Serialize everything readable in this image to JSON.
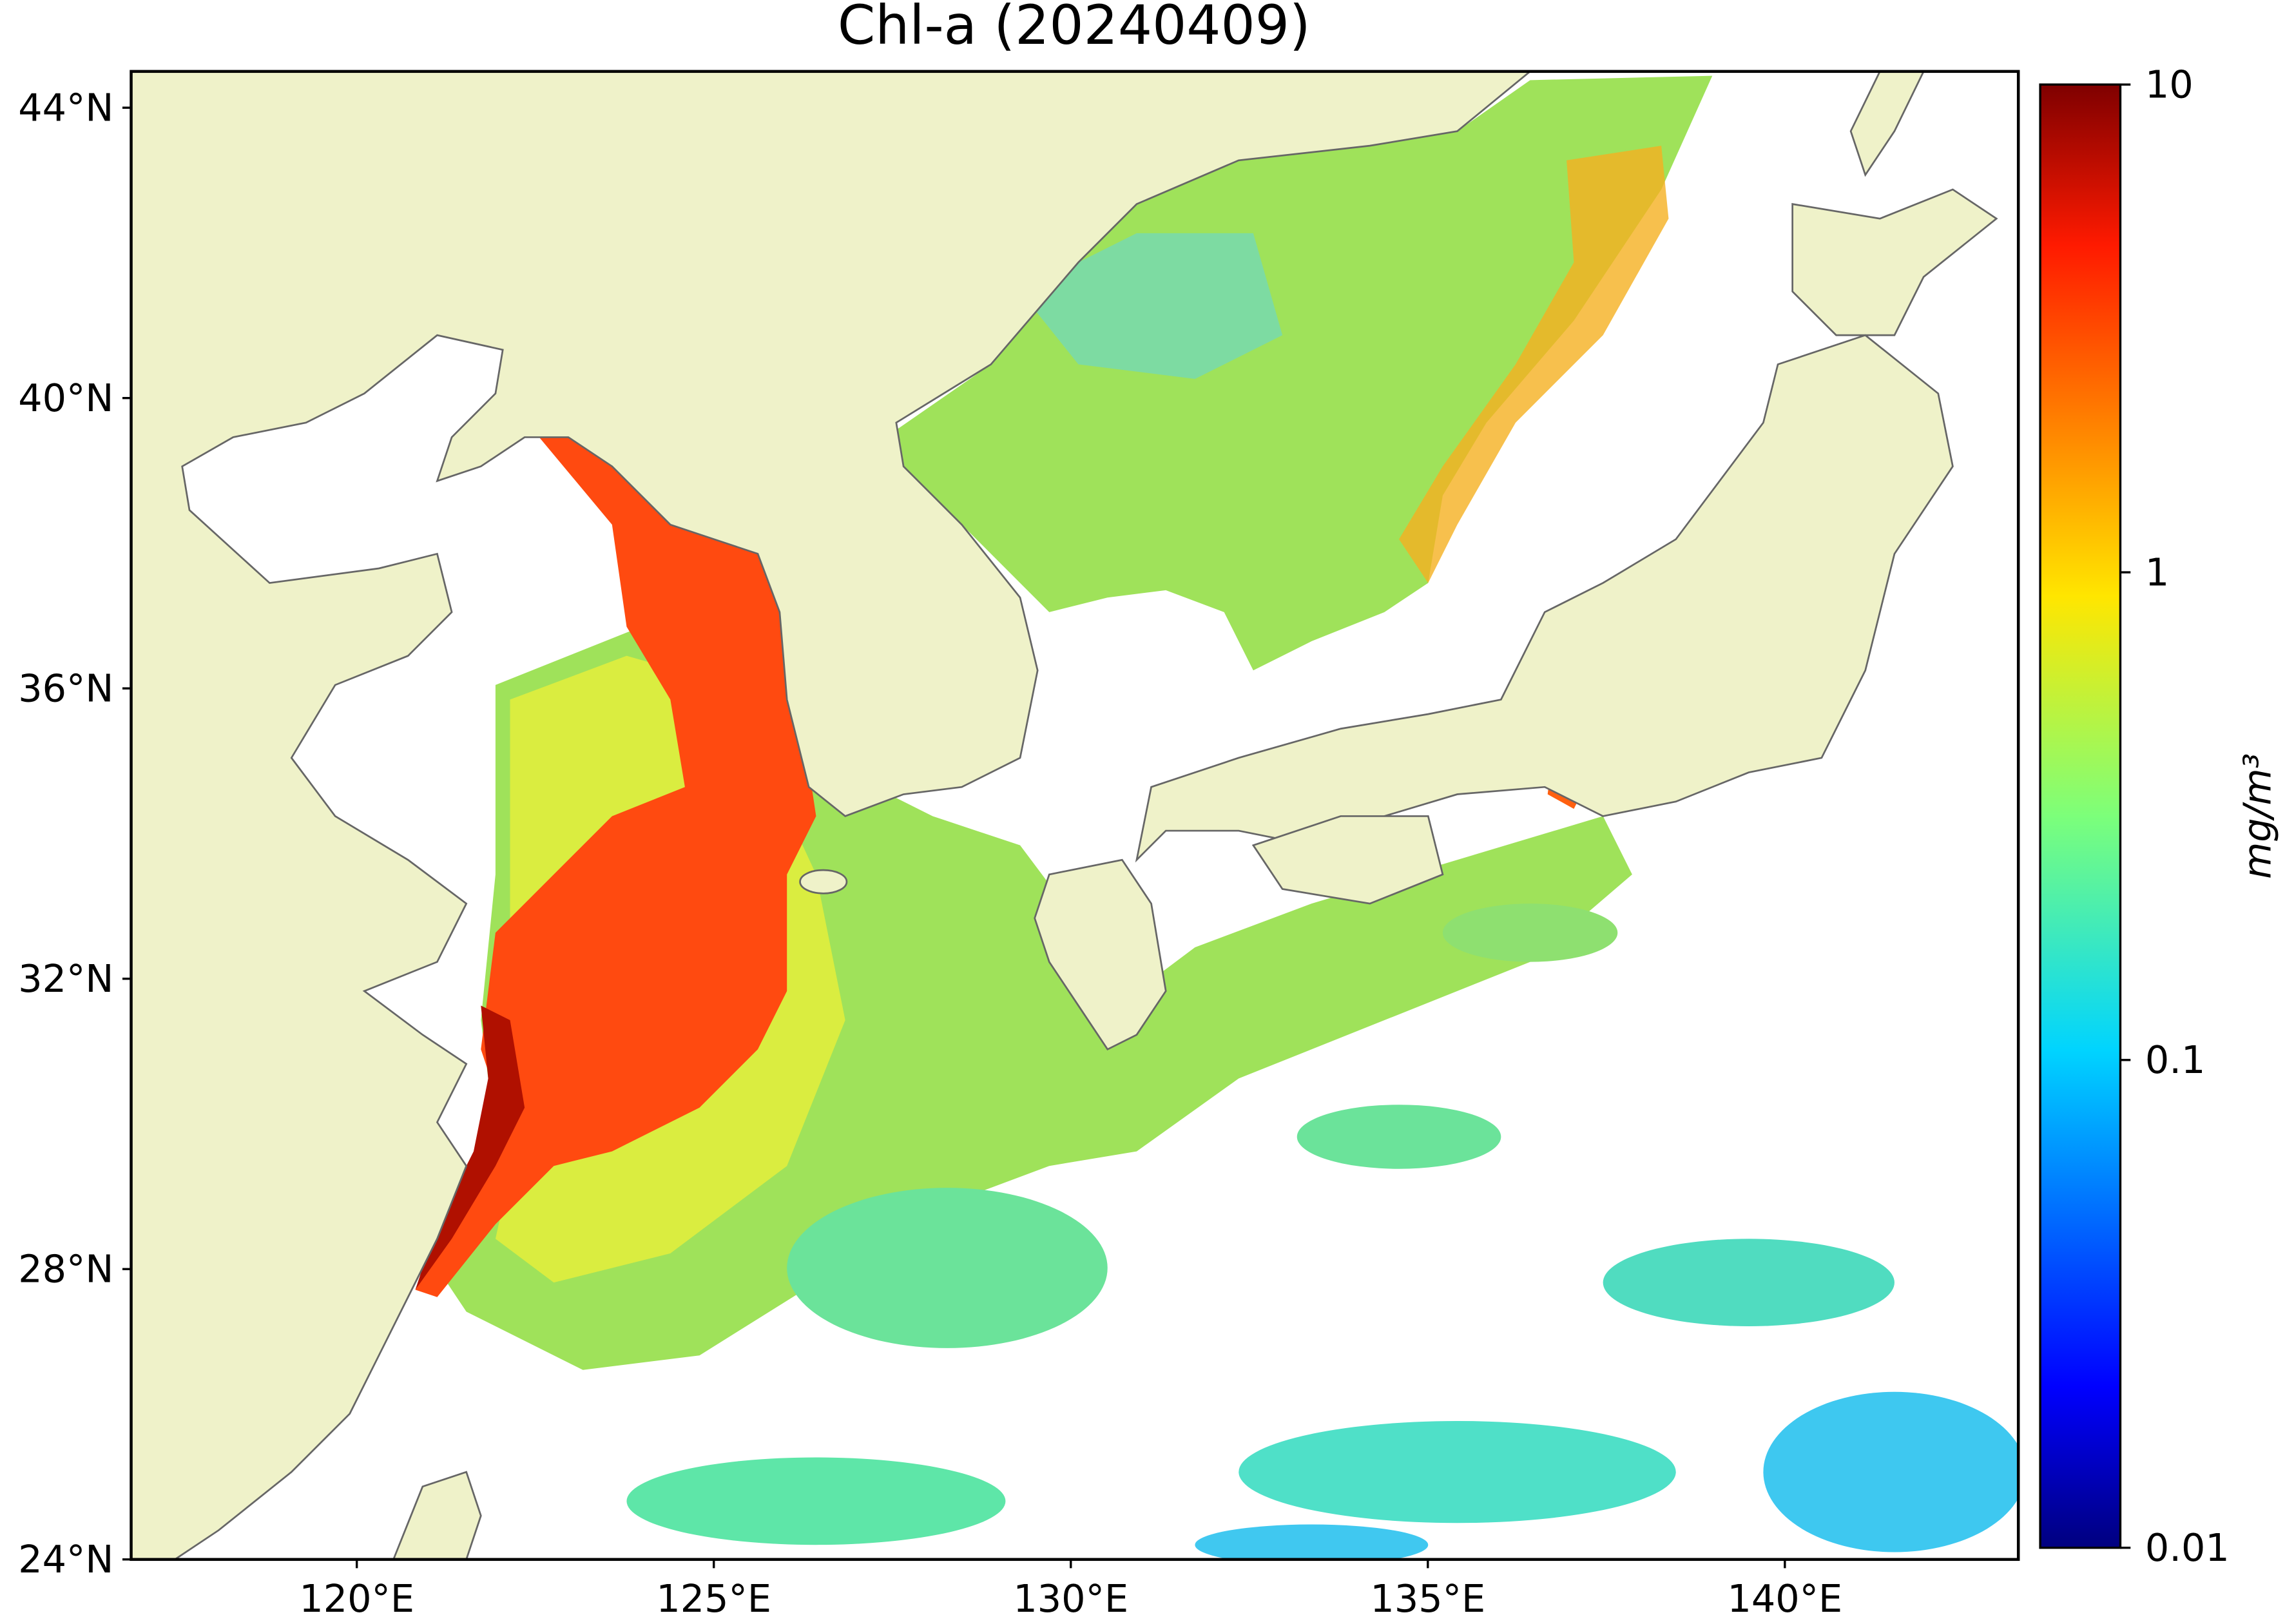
{
  "map": {
    "title": "Chl-a (20240409)",
    "xlim": [
      116.84,
      143.27
    ],
    "ylim": [
      24,
      44.5
    ],
    "xticks": [
      {
        "value": 120,
        "label": "120°E"
      },
      {
        "value": 125,
        "label": "125°E"
      },
      {
        "value": 130,
        "label": "130°E"
      },
      {
        "value": 135,
        "label": "135°E"
      },
      {
        "value": 140,
        "label": "140°E"
      }
    ],
    "yticks": [
      {
        "value": 24,
        "label": "24°N"
      },
      {
        "value": 28,
        "label": "28°N"
      },
      {
        "value": 32,
        "label": "32°N"
      },
      {
        "value": 36,
        "label": "36°N"
      },
      {
        "value": 40,
        "label": "40°N"
      },
      {
        "value": 44,
        "label": "44°N"
      }
    ],
    "colorbar": {
      "label": "mg/m³",
      "clim": [
        0.01,
        10
      ],
      "log": true,
      "ticks": [
        0.01,
        0.1,
        1,
        10
      ]
    }
  }
}
